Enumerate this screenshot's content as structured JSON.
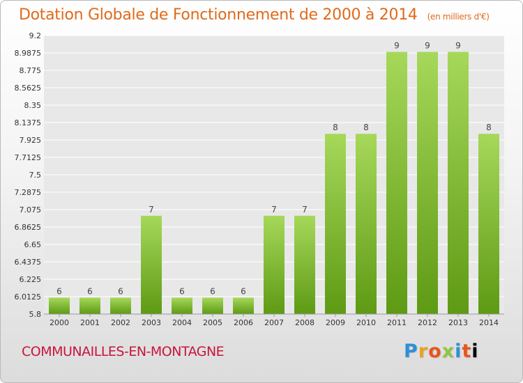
{
  "title": "Dotation Globale de Fonctionnement de 2000 à 2014",
  "unit_label": "(en milliers d'€)",
  "commune": "COMMUNAILLES-EN-MONTAGNE",
  "logo": [
    "P",
    "r",
    "o",
    "x",
    "i",
    "t",
    "i"
  ],
  "colors": {
    "bar_light": "#a6d85a",
    "bar_dark": "#5e9a14",
    "title": "#df6a1a",
    "commune": "#c8143c"
  },
  "chart_data": {
    "type": "bar",
    "categories": [
      "2000",
      "2001",
      "2002",
      "2003",
      "2004",
      "2005",
      "2006",
      "2007",
      "2008",
      "2009",
      "2010",
      "2011",
      "2012",
      "2013",
      "2014"
    ],
    "values": [
      6,
      6,
      6,
      7,
      6,
      6,
      6,
      7,
      7,
      8,
      8,
      9,
      9,
      9,
      8
    ],
    "data_labels": [
      "6",
      "6",
      "6",
      "7",
      "6",
      "6",
      "6",
      "7",
      "7",
      "8",
      "8",
      "9",
      "9",
      "9",
      "8"
    ],
    "y_ticks": [
      "5.8",
      "6.0125",
      "6.225",
      "6.4375",
      "6.65",
      "6.8625",
      "7.075",
      "7.2875",
      "7.5",
      "7.7125",
      "7.925",
      "8.1375",
      "8.35",
      "8.5625",
      "8.775",
      "8.9875",
      "9.2"
    ],
    "ylim": [
      5.8,
      9.2
    ],
    "grid": true,
    "title": "Dotation Globale de Fonctionnement de 2000 à 2014",
    "xlabel": "",
    "ylabel": ""
  }
}
